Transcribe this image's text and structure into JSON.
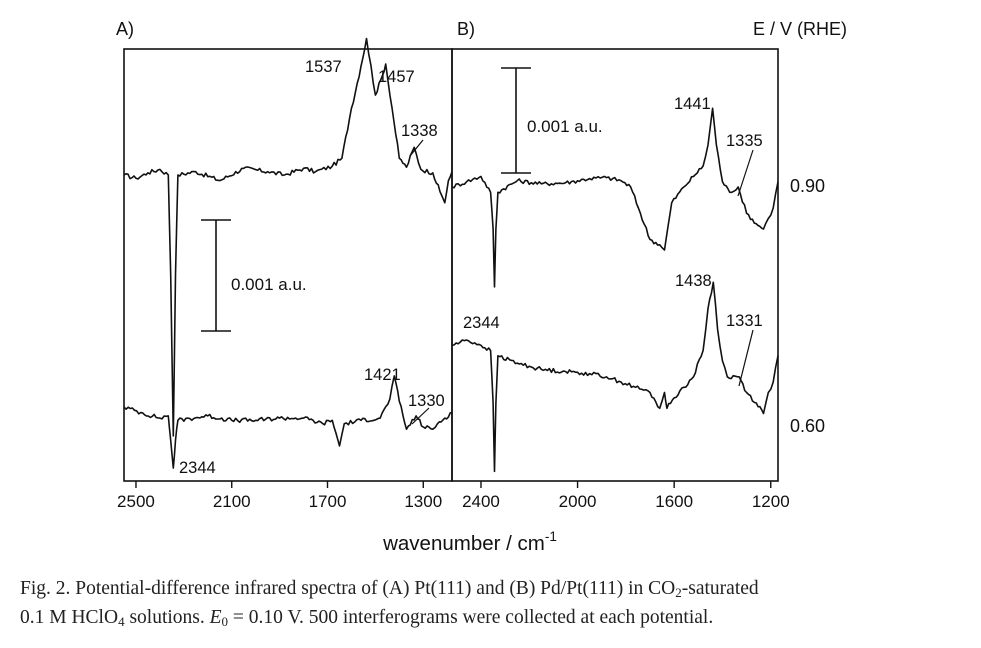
{
  "figure": {
    "panel_a_label": "A)",
    "panel_b_label": "B)",
    "potential_header": "E / V (RHE)",
    "x_axis_label": "wavenumber / cm",
    "x_axis_label_sup": "-1",
    "scale_bar_a": "0.001 a.u.",
    "scale_bar_b": "0.001 a.u.",
    "potential_labels": [
      "0.90",
      "0.60"
    ],
    "colors": {
      "trace": "#111111",
      "axes": "#111111",
      "background": "#ffffff"
    }
  },
  "chart_data": [
    {
      "type": "line",
      "title": "",
      "panel": "A)",
      "xlabel": "wavenumber / cm-1",
      "ylabel": "",
      "xlim": [
        2550,
        1180
      ],
      "x_reversed": true,
      "xticks": [
        2500,
        2100,
        1700,
        1300
      ],
      "grid": false,
      "scale_bar": "0.001 a.u.",
      "series": [
        {
          "potential": "0.90",
          "peak_labels": [
            "1537",
            "1457",
            "1338"
          ],
          "points": [
            [
              2550,
              0.0
            ],
            [
              2500,
              -3e-05
            ],
            [
              2450,
              2e-05
            ],
            [
              2400,
              5e-05
            ],
            [
              2365,
              0.0
            ],
            [
              2355,
              -0.0009
            ],
            [
              2344,
              -0.00235
            ],
            [
              2335,
              -0.0009
            ],
            [
              2325,
              0.0
            ],
            [
              2250,
              3e-05
            ],
            [
              2150,
              -5e-05
            ],
            [
              2050,
              6e-05
            ],
            [
              1950,
              3e-05
            ],
            [
              1880,
              0.0
            ],
            [
              1800,
              6e-05
            ],
            [
              1750,
              3e-05
            ],
            [
              1680,
              8e-05
            ],
            [
              1640,
              0.00015
            ],
            [
              1600,
              0.0006
            ],
            [
              1560,
              0.00098
            ],
            [
              1537,
              0.00123
            ],
            [
              1500,
              0.00072
            ],
            [
              1470,
              0.0009
            ],
            [
              1457,
              0.001
            ],
            [
              1430,
              0.0006
            ],
            [
              1400,
              0.00015
            ],
            [
              1370,
              7e-05
            ],
            [
              1338,
              0.00025
            ],
            [
              1310,
              5e-05
            ],
            [
              1260,
              2e-05
            ],
            [
              1230,
              -0.00015
            ],
            [
              1210,
              -0.00025
            ],
            [
              1195,
              -5e-05
            ],
            [
              1180,
              3e-05
            ]
          ]
        },
        {
          "potential": "0.60",
          "peak_labels": [
            "1421",
            "1330",
            "2344"
          ],
          "points": [
            [
              2550,
              0.0
            ],
            [
              2480,
              -5e-05
            ],
            [
              2400,
              -0.0001
            ],
            [
              2365,
              -8e-05
            ],
            [
              2355,
              -0.0003
            ],
            [
              2344,
              -0.00055
            ],
            [
              2335,
              -0.0003
            ],
            [
              2325,
              -0.00012
            ],
            [
              2200,
              -8e-05
            ],
            [
              2100,
              -0.00012
            ],
            [
              2000,
              -0.00012
            ],
            [
              1900,
              -0.0001
            ],
            [
              1800,
              -0.0001
            ],
            [
              1720,
              -0.00015
            ],
            [
              1680,
              -0.00012
            ],
            [
              1650,
              -0.00035
            ],
            [
              1630,
              -0.00015
            ],
            [
              1560,
              -0.00012
            ],
            [
              1480,
              -0.0001
            ],
            [
              1440,
              7e-05
            ],
            [
              1421,
              0.00028
            ],
            [
              1400,
              5e-05
            ],
            [
              1370,
              -0.0002
            ],
            [
              1330,
              -8e-05
            ],
            [
              1300,
              -0.00018
            ],
            [
              1260,
              -0.0002
            ],
            [
              1240,
              -0.00015
            ],
            [
              1210,
              -0.0001
            ],
            [
              1180,
              -5e-05
            ]
          ]
        }
      ]
    },
    {
      "type": "line",
      "title": "",
      "panel": "B)",
      "xlabel": "wavenumber / cm-1",
      "ylabel": "",
      "xlim": [
        2520,
        1170
      ],
      "x_reversed": true,
      "xticks": [
        2400,
        2000,
        1600,
        1200
      ],
      "grid": false,
      "scale_bar": "0.001 a.u.",
      "series": [
        {
          "potential": "0.90",
          "peak_labels": [
            "1441",
            "1335",
            "2344"
          ],
          "points": [
            [
              2520,
              0.0
            ],
            [
              2460,
              5e-05
            ],
            [
              2400,
              0.0001
            ],
            [
              2360,
              -5e-05
            ],
            [
              2350,
              -0.0004
            ],
            [
              2344,
              -0.00095
            ],
            [
              2338,
              -0.0004
            ],
            [
              2330,
              -5e-05
            ],
            [
              2250,
              6e-05
            ],
            [
              2150,
              3e-05
            ],
            [
              2050,
              4e-05
            ],
            [
              1950,
              8e-05
            ],
            [
              1880,
              9e-05
            ],
            [
              1820,
              6e-05
            ],
            [
              1780,
              0.0
            ],
            [
              1740,
              -0.00025
            ],
            [
              1700,
              -0.0005
            ],
            [
              1660,
              -0.00055
            ],
            [
              1640,
              -0.0006
            ],
            [
              1610,
              -0.00015
            ],
            [
              1560,
              0.0
            ],
            [
              1520,
              0.0001
            ],
            [
              1480,
              0.0002
            ],
            [
              1460,
              0.0004
            ],
            [
              1441,
              0.00075
            ],
            [
              1425,
              0.0004
            ],
            [
              1400,
              5e-05
            ],
            [
              1370,
              -5e-05
            ],
            [
              1335,
              0.0
            ],
            [
              1300,
              -0.00025
            ],
            [
              1260,
              -0.00035
            ],
            [
              1230,
              -0.0004
            ],
            [
              1210,
              -0.0003
            ],
            [
              1190,
              -0.0002
            ],
            [
              1170,
              5e-05
            ]
          ]
        },
        {
          "potential": "0.60",
          "peak_labels": [
            "1438",
            "1331"
          ],
          "points": [
            [
              2520,
              0.00035
            ],
            [
              2460,
              0.0004
            ],
            [
              2400,
              0.00035
            ],
            [
              2360,
              0.0003
            ],
            [
              2350,
              -0.0002
            ],
            [
              2344,
              -0.00085
            ],
            [
              2338,
              -0.0002
            ],
            [
              2330,
              0.00025
            ],
            [
              2250,
              0.00018
            ],
            [
              2150,
              0.00012
            ],
            [
              2050,
              0.0001
            ],
            [
              1950,
              8e-05
            ],
            [
              1880,
              5e-05
            ],
            [
              1820,
              0.0
            ],
            [
              1760,
              -5e-05
            ],
            [
              1700,
              -0.0001
            ],
            [
              1660,
              -0.00025
            ],
            [
              1640,
              -0.0001
            ],
            [
              1630,
              -0.00025
            ],
            [
              1600,
              -0.00015
            ],
            [
              1560,
              -5e-05
            ],
            [
              1520,
              5e-05
            ],
            [
              1480,
              0.0003
            ],
            [
              1460,
              0.0007
            ],
            [
              1438,
              0.00095
            ],
            [
              1420,
              0.0005
            ],
            [
              1400,
              0.0002
            ],
            [
              1380,
              5e-05
            ],
            [
              1331,
              5e-05
            ],
            [
              1300,
              -0.0001
            ],
            [
              1260,
              -0.0002
            ],
            [
              1230,
              -0.0003
            ],
            [
              1210,
              -0.0001
            ],
            [
              1190,
              0.0
            ],
            [
              1170,
              0.00025
            ]
          ]
        }
      ]
    }
  ],
  "caption": {
    "lines": [
      {
        "segments": [
          {
            "text": "Fig. 2. Potential-difference infrared spectra of (A) Pt(111) and (B) Pd/Pt(111) in CO"
          },
          {
            "text": "2",
            "sub": true
          },
          {
            "text": "-saturated"
          }
        ]
      },
      {
        "segments": [
          {
            "text": "0.1 M HClO"
          },
          {
            "text": "4",
            "sub": true
          },
          {
            "text": " solutions. "
          },
          {
            "text": "E",
            "italic": true
          },
          {
            "text": "0",
            "sub": true
          },
          {
            "text": " = 0.10 V. 500 interferograms were collected at each potential."
          }
        ]
      }
    ]
  }
}
